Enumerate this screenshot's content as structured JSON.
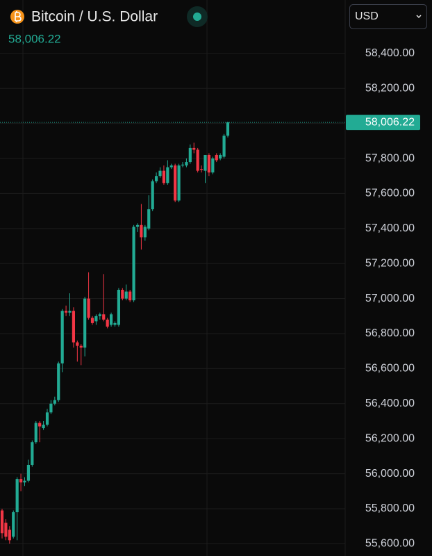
{
  "chart_data": {
    "type": "candlestick",
    "title": "Bitcoin / U.S. Dollar",
    "currency": "USD",
    "last_price": {
      "value": 58006.22,
      "label": "58,006.22"
    },
    "up_color": "#22ab94",
    "down_color": "#f23645",
    "grid": true,
    "ylim": [
      55530,
      58705
    ],
    "yticks": [
      {
        "value": 55600,
        "label": "55,600.00"
      },
      {
        "value": 55800,
        "label": "55,800.00"
      },
      {
        "value": 56000,
        "label": "56,000.00"
      },
      {
        "value": 56200,
        "label": "56,200.00"
      },
      {
        "value": 56400,
        "label": "56,400.00"
      },
      {
        "value": 56600,
        "label": "56,600.00"
      },
      {
        "value": 56800,
        "label": "56,800.00"
      },
      {
        "value": 57000,
        "label": "57,000.00"
      },
      {
        "value": 57200,
        "label": "57,200.00"
      },
      {
        "value": 57400,
        "label": "57,400.00"
      },
      {
        "value": 57600,
        "label": "57,600.00"
      },
      {
        "value": 57800,
        "label": "57,800.00"
      },
      {
        "value": 58000,
        "label": "58,000.00"
      },
      {
        "value": 58200,
        "label": "58,200.00"
      },
      {
        "value": 58400,
        "label": "58,400.00"
      }
    ],
    "open": [
      55790,
      55720,
      55680,
      55640,
      55780,
      55970,
      55950,
      55960,
      56050,
      56180,
      56290,
      56260,
      56280,
      56350,
      56400,
      56420,
      56630,
      56930,
      56920,
      56930,
      56750,
      56730,
      56720,
      57000,
      56890,
      56870,
      56900,
      56910,
      56880,
      56850,
      56850,
      56850,
      57050,
      57000,
      57040,
      56990,
      57410,
      57420,
      57350,
      57400,
      57510,
      57670,
      57700,
      57730,
      57660,
      57750,
      57760,
      57560,
      57760,
      57760,
      57780,
      57860,
      57850,
      57740,
      57730,
      57820,
      57720,
      57820,
      57800,
      57810,
      57930
    ],
    "close": [
      55660,
      55640,
      55620,
      55780,
      55970,
      55950,
      55960,
      56050,
      56180,
      56290,
      56270,
      56280,
      56350,
      56400,
      56420,
      56630,
      56930,
      56920,
      56930,
      56750,
      56730,
      56720,
      57000,
      56890,
      56860,
      56900,
      56910,
      56880,
      56840,
      56910,
      56860,
      57050,
      57000,
      57040,
      56990,
      57410,
      57420,
      57350,
      57410,
      57510,
      57670,
      57700,
      57730,
      57660,
      57750,
      57760,
      57560,
      57760,
      57765,
      57780,
      57860,
      57850,
      57730,
      57735,
      57820,
      57720,
      57800,
      57790,
      57820,
      57930,
      58006.22
    ],
    "high": [
      55800,
      55740,
      55700,
      55790,
      55980,
      56000,
      55980,
      56080,
      56190,
      56300,
      56300,
      56300,
      56370,
      56420,
      56440,
      56640,
      56940,
      56960,
      57030,
      56950,
      56760,
      56740,
      57010,
      57150,
      56900,
      56910,
      56920,
      57140,
      56890,
      56920,
      56870,
      57060,
      57060,
      57080,
      57050,
      57420,
      57430,
      57540,
      57420,
      57590,
      57680,
      57720,
      57750,
      57760,
      57790,
      57770,
      57770,
      57770,
      57780,
      57800,
      57880,
      57890,
      57860,
      57760,
      57820,
      57830,
      57810,
      57830,
      57830,
      57940,
      58010
    ],
    "low": [
      55630,
      55620,
      55600,
      55630,
      55620,
      55900,
      55930,
      55950,
      56040,
      56170,
      56180,
      56250,
      56270,
      56340,
      56390,
      56410,
      56580,
      56900,
      56900,
      56720,
      56640,
      56620,
      56670,
      56880,
      56850,
      56850,
      56880,
      56870,
      56830,
      56840,
      56840,
      56840,
      56990,
      56990,
      56980,
      56980,
      57380,
      57280,
      57330,
      57390,
      57500,
      57660,
      57690,
      57650,
      57650,
      57740,
      57550,
      57550,
      57750,
      57750,
      57770,
      57830,
      57720,
      57720,
      57660,
      57700,
      57710,
      57780,
      57790,
      57800,
      57920
    ]
  }
}
